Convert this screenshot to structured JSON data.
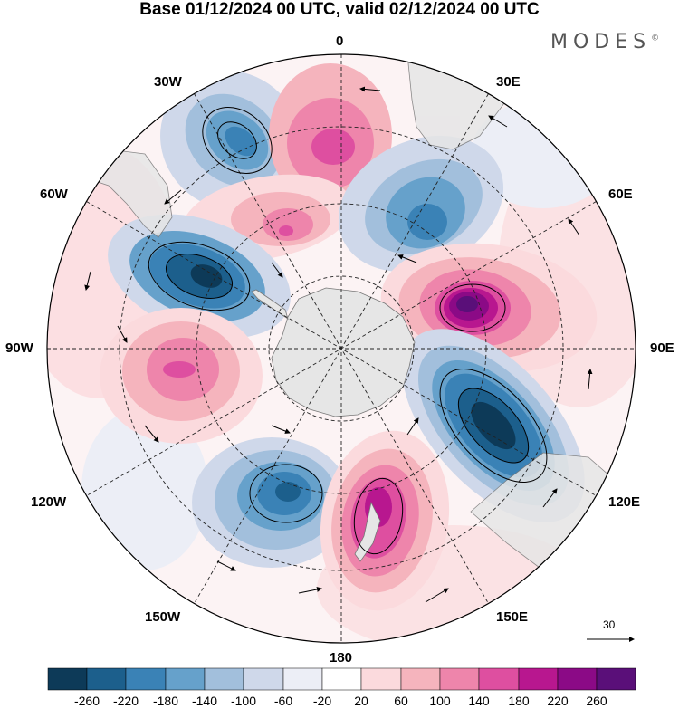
{
  "header": {
    "title": "Base 01/12/2024 00 UTC, valid 02/12/2024 00 UTC",
    "brand": "MODES",
    "brand_mark": "©"
  },
  "longitude_labels": {
    "l0": "0",
    "l30e": "30E",
    "l60e": "60E",
    "l90e": "90E",
    "l120e": "120E",
    "l150e": "150E",
    "l180": "180",
    "l150w": "150W",
    "l120w": "120W",
    "l90w": "90W",
    "l60w": "60W",
    "l30w": "30W"
  },
  "wind_reference": {
    "label": "30"
  },
  "colorbar": {
    "levels": [
      "-260",
      "-220",
      "-180",
      "-140",
      "-100",
      "-60",
      "-20",
      "20",
      "60",
      "100",
      "140",
      "180",
      "220",
      "260"
    ],
    "colors": [
      "#0d3a58",
      "#1c5f8c",
      "#3a82b6",
      "#66a1cb",
      "#a2bfdc",
      "#cfd8ea",
      "#eceef6",
      "#ffffff",
      "#fbdadd",
      "#f5b4bd",
      "#ee85ab",
      "#de4fa0",
      "#b8178f",
      "#8b0a86",
      "#5a0f79"
    ]
  },
  "map_colors": {
    "land": "#e6e6e6",
    "coast": "#777777",
    "grid": "#222222"
  }
}
